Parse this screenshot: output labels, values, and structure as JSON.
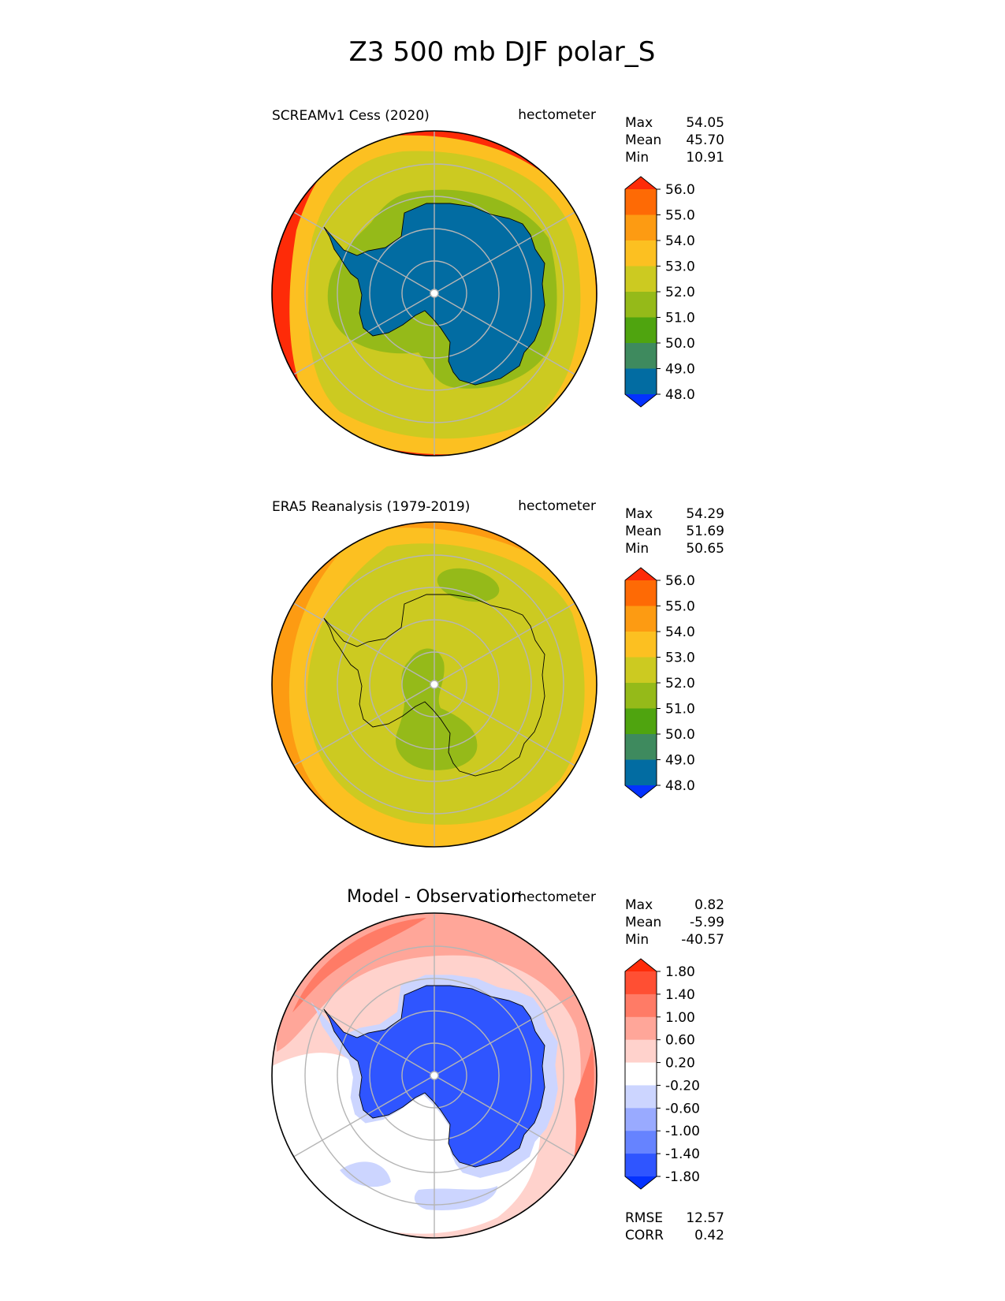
{
  "title": "Z3 500 mb DJF polar_S",
  "colorbar_fill_keys": [
    "below",
    "b1",
    "b2",
    "b3",
    "b4",
    "b5",
    "b6",
    "b7",
    "b8",
    "above"
  ],
  "colors": {
    "abs": [
      "#0432ff",
      "#026ca2",
      "#3e8a5e",
      "#4fa40f",
      "#95ba19",
      "#ccca21",
      "#fcc021",
      "#fd9b12",
      "#fe6a05",
      "#fe2b08"
    ],
    "diff": [
      "#0432ff",
      "#2f55ff",
      "#6683ff",
      "#99aaff",
      "#ccd5ff",
      "#ffffff",
      "#ffd2cc",
      "#ffa699",
      "#ff7b66",
      "#ff4f33",
      "#fe2b08"
    ]
  },
  "chart_data": [
    {
      "type": "heatmap",
      "projection": "south-polar-stereographic",
      "left_title": "SCREAMv1 Cess (2020)",
      "units": "hectometer",
      "stats": [
        {
          "label": "Max",
          "value": "54.05"
        },
        {
          "label": "Mean",
          "value": "45.70"
        },
        {
          "label": "Min",
          "value": "10.91"
        }
      ],
      "colorbar": {
        "tick_labels": [
          "56.0",
          "55.0",
          "54.0",
          "53.0",
          "52.0",
          "51.0",
          "50.0",
          "49.0",
          "48.0"
        ],
        "extend": "both"
      },
      "field_pattern": {
        "outer_ring": {
          "level": 53.0
        },
        "mid_ring": {
          "level": 52.0
        },
        "inner_ring": {
          "level": 51.0
        },
        "antarctica_interior": {
          "level": 48.0
        }
      }
    },
    {
      "type": "heatmap",
      "projection": "south-polar-stereographic",
      "left_title": "ERA5 Reanalysis (1979-2019)",
      "units": "hectometer",
      "stats": [
        {
          "label": "Max",
          "value": "54.29"
        },
        {
          "label": "Mean",
          "value": "51.69"
        },
        {
          "label": "Min",
          "value": "50.65"
        }
      ],
      "colorbar": {
        "tick_labels": [
          "56.0",
          "55.0",
          "54.0",
          "53.0",
          "52.0",
          "51.0",
          "50.0",
          "49.0",
          "48.0"
        ],
        "extend": "both"
      },
      "field_pattern": {
        "outer_ring": {
          "level": 53.5
        },
        "mid_ring": {
          "level": 52.5
        },
        "interior": {
          "level": 51.5
        },
        "lows": {
          "level": 50.5,
          "count": 2
        }
      }
    },
    {
      "type": "heatmap",
      "projection": "south-polar-stereographic",
      "left_title": "",
      "center_title": "Model - Observation",
      "units": "hectometer",
      "stats": [
        {
          "label": "Max",
          "value": "0.82"
        },
        {
          "label": "Mean",
          "value": "-5.99"
        },
        {
          "label": "Min",
          "value": "-40.57"
        }
      ],
      "colorbar": {
        "tick_labels": [
          "1.80",
          "1.40",
          "1.00",
          "0.60",
          "0.20",
          "-0.20",
          "-0.60",
          "-1.00",
          "-1.40",
          "-1.80"
        ],
        "extend": "both"
      },
      "metrics": [
        {
          "label": "RMSE",
          "value": "12.57"
        },
        {
          "label": "CORR",
          "value": "0.42"
        }
      ]
    }
  ]
}
